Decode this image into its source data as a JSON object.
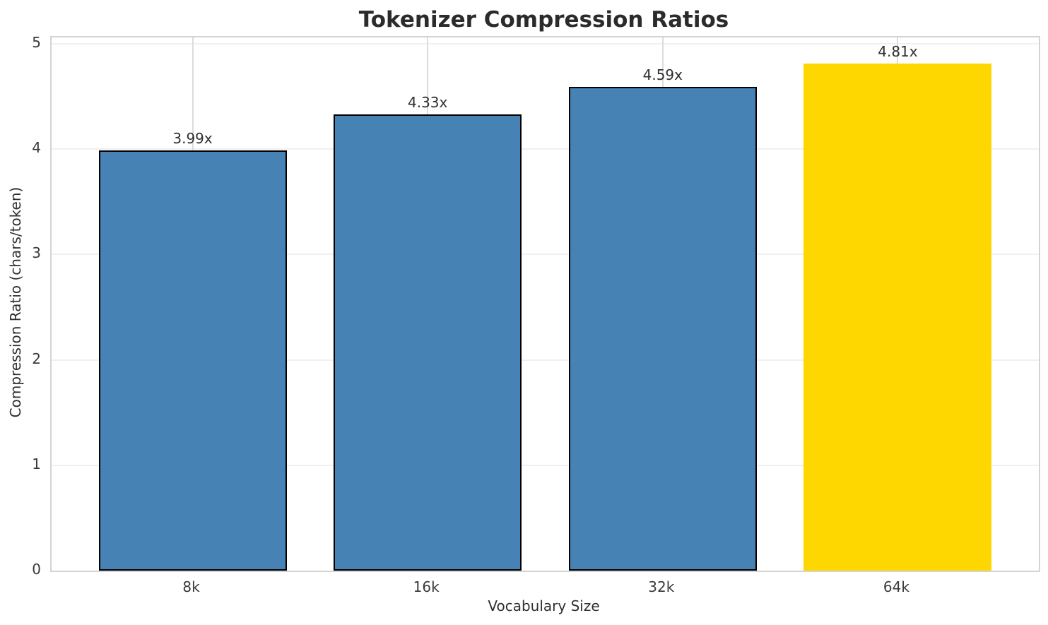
{
  "chart_data": {
    "type": "bar",
    "title": "Tokenizer Compression Ratios",
    "xlabel": "Vocabulary Size",
    "ylabel": "Compression Ratio (chars/token)",
    "categories": [
      "8k",
      "16k",
      "32k",
      "64k"
    ],
    "values": [
      3.99,
      4.33,
      4.59,
      4.81
    ],
    "bar_labels": [
      "3.99x",
      "4.33x",
      "4.59x",
      "4.81x"
    ],
    "highlight_index": 3,
    "yticks": [
      0,
      1,
      2,
      3,
      4,
      5
    ],
    "ytick_labels": [
      "0",
      "1",
      "2",
      "3",
      "4",
      "5"
    ],
    "ylim": [
      0,
      5
    ],
    "grid": true,
    "legend_position": "none",
    "colors": {
      "bar": "#4682B4",
      "bar_highlight": "#FFD700",
      "bar_edge": "#000000",
      "grid_h": "#f0f0f0",
      "grid_v": "#dcdcdc",
      "spine": "#d3d3d3",
      "title_text": "#2b2b2b",
      "tick_text": "#3a3a3a",
      "value_label_text": "#2f2f2f"
    }
  }
}
